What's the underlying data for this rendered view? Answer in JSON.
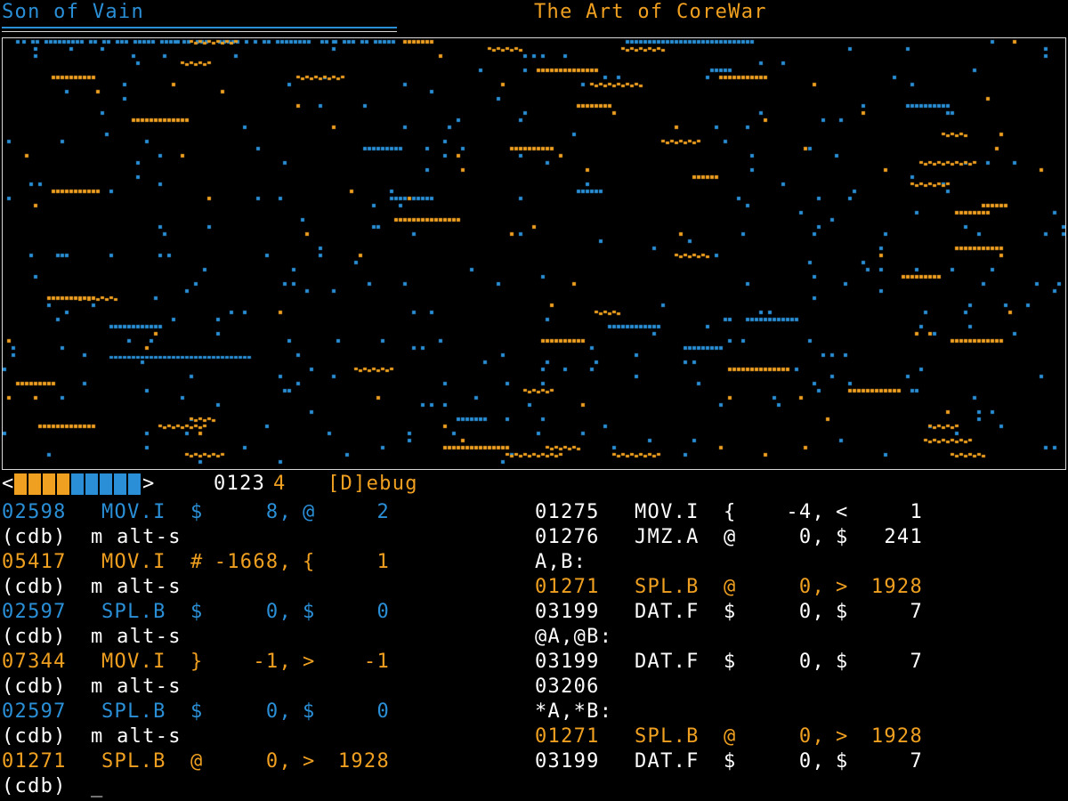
{
  "header": {
    "warrior_1": "Son of Vain",
    "warrior_2": "The Art of CoreWar"
  },
  "colors": {
    "warrior_1": "#2a8fd6",
    "warrior_2": "#f0a020",
    "text": "#ffffff",
    "background": "#000000",
    "core_border": "#d8d8d8"
  },
  "status_bar": {
    "left_chevron": "<",
    "right_chevron": ">",
    "process_meter": {
      "warrior_2_segments": 4,
      "warrior_1_segments": 5
    },
    "digits_white": "0123",
    "digit_highlight": "4",
    "debug_label": "[D]ebug"
  },
  "debugger_left": [
    {
      "kind": "instr",
      "color": "blue",
      "addr": "02598",
      "op": "MOV.I",
      "am": "$",
      "a": "8,",
      "bm": "@",
      "b": "2"
    },
    {
      "kind": "cmd",
      "prompt": "(cdb)",
      "cmd": "m alt-s"
    },
    {
      "kind": "instr",
      "color": "orange",
      "addr": "05417",
      "op": "MOV.I",
      "am": "#",
      "a": "-1668,",
      "bm": "{",
      "b": "1"
    },
    {
      "kind": "cmd",
      "prompt": "(cdb)",
      "cmd": "m alt-s"
    },
    {
      "kind": "instr",
      "color": "blue",
      "addr": "02597",
      "op": "SPL.B",
      "am": "$",
      "a": "0,",
      "bm": "$",
      "b": "0"
    },
    {
      "kind": "cmd",
      "prompt": "(cdb)",
      "cmd": "m alt-s"
    },
    {
      "kind": "instr",
      "color": "orange",
      "addr": "07344",
      "op": "MOV.I",
      "am": "}",
      "a": "-1,",
      "bm": ">",
      "b": "-1"
    },
    {
      "kind": "cmd",
      "prompt": "(cdb)",
      "cmd": "m alt-s"
    },
    {
      "kind": "instr",
      "color": "blue",
      "addr": "02597",
      "op": "SPL.B",
      "am": "$",
      "a": "0,",
      "bm": "$",
      "b": "0"
    },
    {
      "kind": "cmd",
      "prompt": "(cdb)",
      "cmd": "m alt-s"
    },
    {
      "kind": "instr",
      "color": "orange",
      "addr": "01271",
      "op": "SPL.B",
      "am": "@",
      "a": "0,",
      "bm": ">",
      "b": "1928"
    },
    {
      "kind": "cmd",
      "prompt": "(cdb)",
      "cmd": "_"
    }
  ],
  "debugger_right": [
    {
      "kind": "instr",
      "color": "white",
      "addr": "01275",
      "op": "MOV.I",
      "am": "{",
      "a": "-4,",
      "bm": "<",
      "b": "1"
    },
    {
      "kind": "instr",
      "color": "white",
      "addr": "01276",
      "op": "JMZ.A",
      "am": "@",
      "a": "0,",
      "bm": "$",
      "b": "241"
    },
    {
      "kind": "label",
      "text": "A,B:"
    },
    {
      "kind": "instr",
      "color": "orange",
      "addr": "01271",
      "op": "SPL.B",
      "am": "@",
      "a": "0,",
      "bm": ">",
      "b": "1928"
    },
    {
      "kind": "instr",
      "color": "white",
      "addr": "03199",
      "op": "DAT.F",
      "am": "$",
      "a": "0,",
      "bm": "$",
      "b": "7"
    },
    {
      "kind": "label",
      "text": "@A,@B:"
    },
    {
      "kind": "instr",
      "color": "white",
      "addr": "03199",
      "op": "DAT.F",
      "am": "$",
      "a": "0,",
      "bm": "$",
      "b": "7"
    },
    {
      "kind": "label",
      "text": "03206"
    },
    {
      "kind": "label",
      "text": "*A,*B:"
    },
    {
      "kind": "instr",
      "color": "orange",
      "addr": "01271",
      "op": "SPL.B",
      "am": "@",
      "a": "0,",
      "bm": ">",
      "b": "1928"
    },
    {
      "kind": "instr",
      "color": "white",
      "addr": "03199",
      "op": "DAT.F",
      "am": "$",
      "a": "0,",
      "bm": "$",
      "b": "7"
    }
  ]
}
